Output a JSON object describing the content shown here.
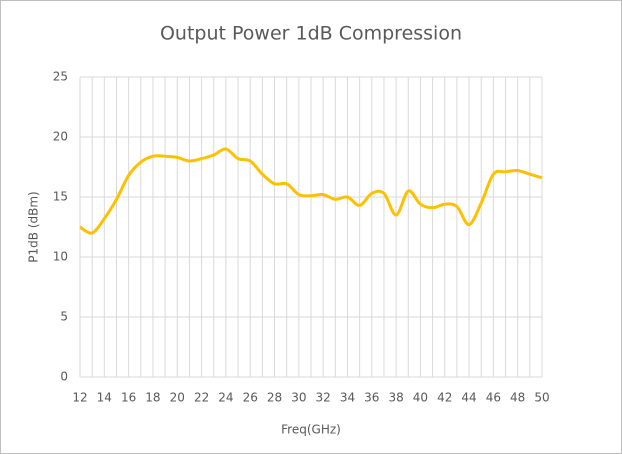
{
  "chart_data": {
    "type": "line",
    "title": "Output Power 1dB Compression",
    "xlabel": "Freq(GHz)",
    "ylabel": "P1dB (dBm)",
    "x": [
      12,
      13,
      14,
      15,
      16,
      17,
      18,
      19,
      20,
      21,
      22,
      23,
      24,
      25,
      26,
      27,
      28,
      29,
      30,
      31,
      32,
      33,
      34,
      35,
      36,
      37,
      38,
      39,
      40,
      41,
      42,
      43,
      44,
      45,
      46,
      47,
      48,
      49,
      50
    ],
    "series": [
      {
        "name": "P1dB",
        "color": "#ffc000",
        "values": [
          12.5,
          12.0,
          13.2,
          14.8,
          16.8,
          17.9,
          18.4,
          18.4,
          18.3,
          18.0,
          18.2,
          18.5,
          19.0,
          18.2,
          18.0,
          16.9,
          16.1,
          16.1,
          15.2,
          15.1,
          15.2,
          14.8,
          15.0,
          14.3,
          15.3,
          15.3,
          13.5,
          15.5,
          14.4,
          14.1,
          14.4,
          14.2,
          12.7,
          14.5,
          16.9,
          17.1,
          17.2,
          16.9,
          16.6
        ]
      }
    ],
    "xlim": [
      12,
      50
    ],
    "xticks": [
      12,
      14,
      16,
      18,
      20,
      22,
      24,
      26,
      28,
      30,
      32,
      34,
      36,
      38,
      40,
      42,
      44,
      46,
      48,
      50
    ],
    "xminorticks": [
      13,
      15,
      17,
      19,
      21,
      23,
      25,
      27,
      29,
      31,
      33,
      35,
      37,
      39,
      41,
      43,
      45,
      47,
      49
    ],
    "ylim": [
      0,
      25
    ],
    "yticks": [
      0,
      5,
      10,
      15,
      20,
      25
    ],
    "grid": true
  }
}
